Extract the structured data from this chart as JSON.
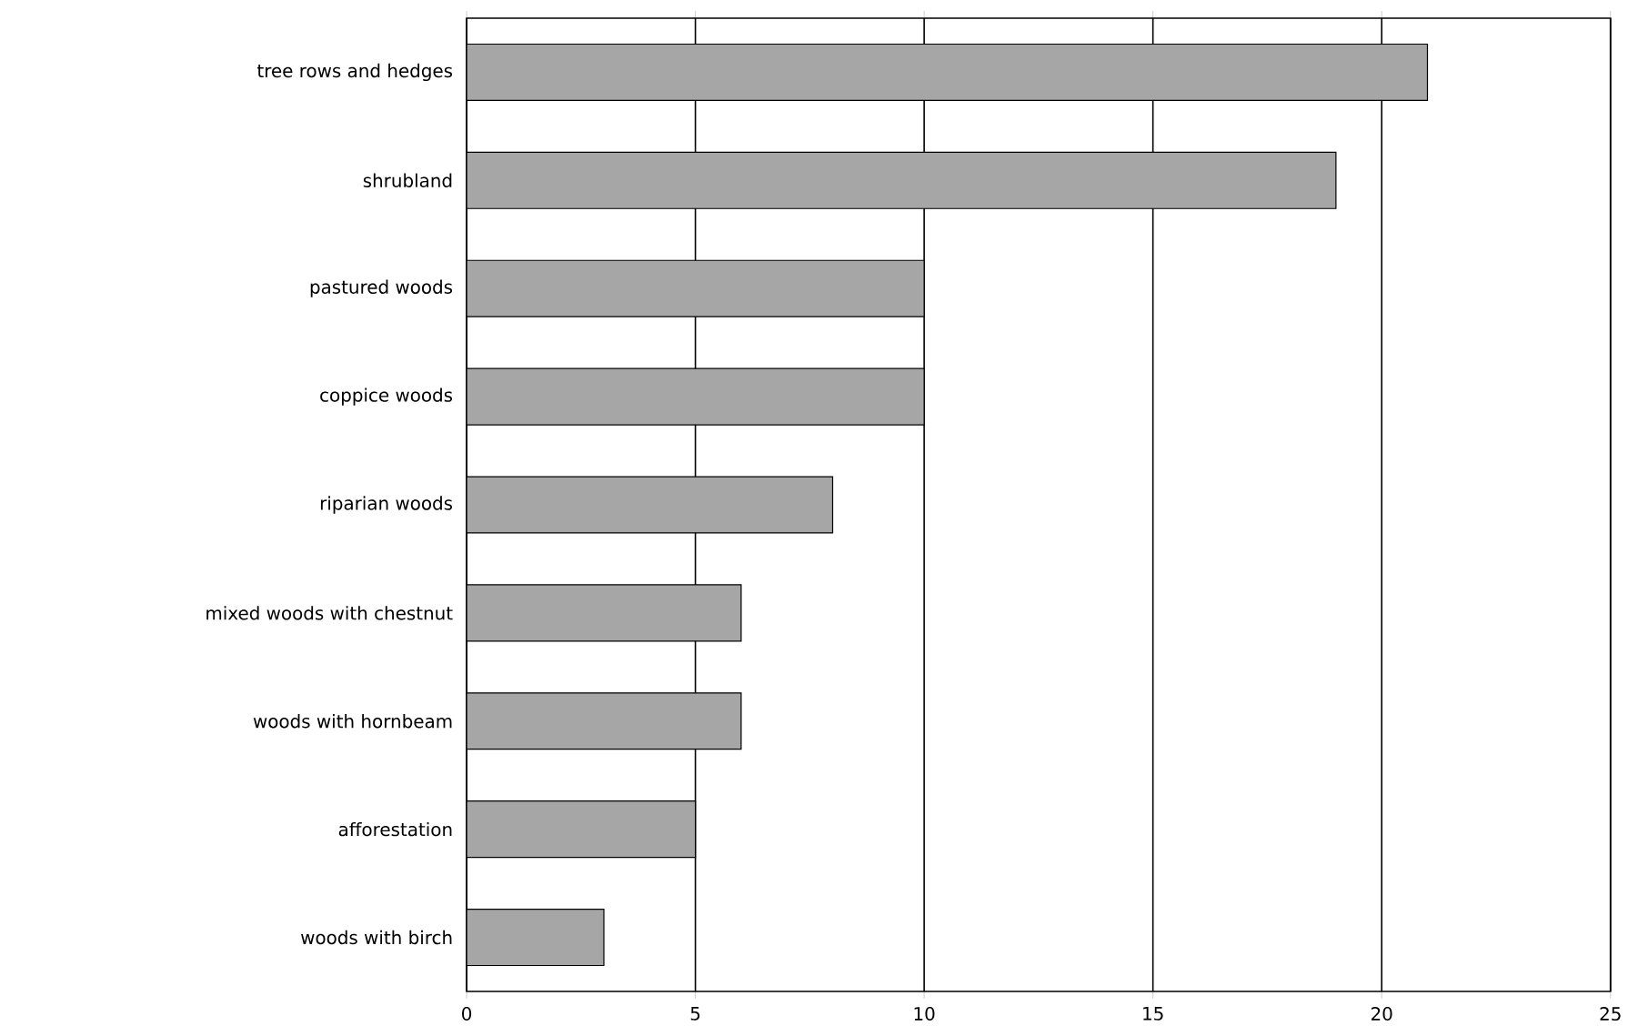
{
  "chart_data": {
    "type": "bar",
    "orientation": "horizontal",
    "categories": [
      "tree rows and hedges",
      "shrubland",
      "pastured woods",
      "coppice woods",
      "riparian woods",
      "mixed woods with chestnut",
      "woods with hornbeam",
      "afforestation",
      "woods with birch"
    ],
    "values": [
      21,
      19,
      10,
      10,
      8,
      6,
      6,
      5,
      3
    ],
    "color": "#a6a6a6",
    "xlim": [
      0,
      25
    ],
    "xticks": [
      0,
      5,
      10,
      15,
      20,
      25
    ],
    "grid": "x"
  }
}
